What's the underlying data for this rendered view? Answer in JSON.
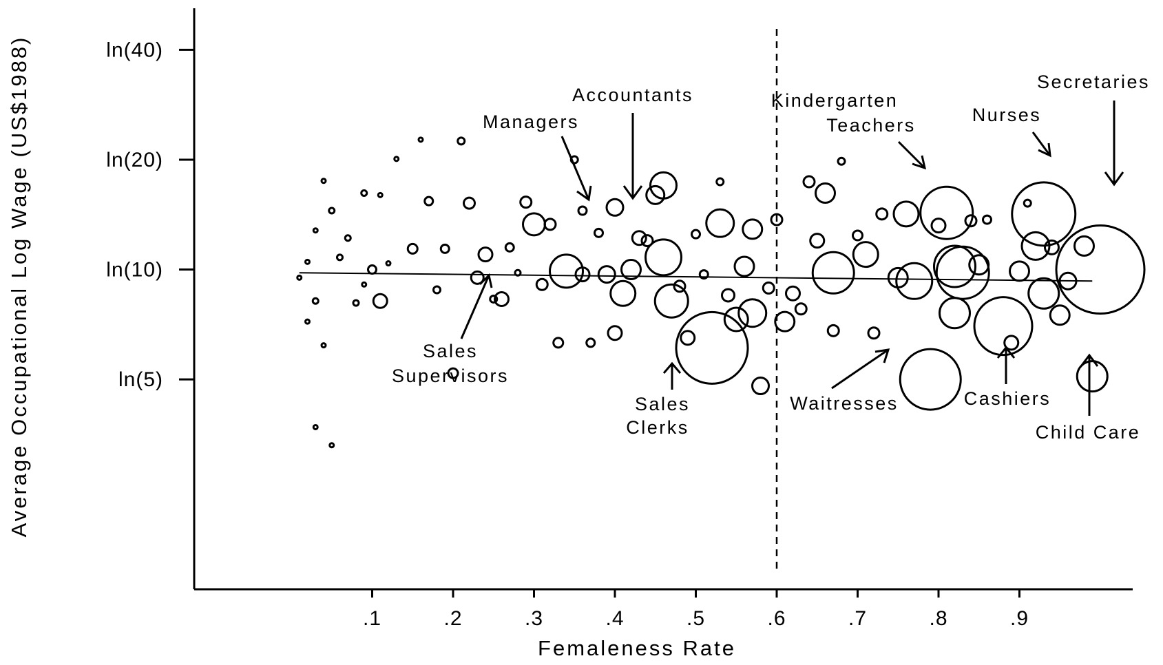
{
  "chart_data": {
    "type": "scatter",
    "subtype": "bubble",
    "xlabel": "Femaleness Rate",
    "ylabel": "Average Occupational Log Wage (US$1988)",
    "x_ticks": [
      {
        "value": 0.1,
        "label": ".1"
      },
      {
        "value": 0.2,
        "label": ".2"
      },
      {
        "value": 0.3,
        "label": ".3"
      },
      {
        "value": 0.4,
        "label": ".4"
      },
      {
        "value": 0.5,
        "label": ".5"
      },
      {
        "value": 0.6,
        "label": ".6"
      },
      {
        "value": 0.7,
        "label": ".7"
      },
      {
        "value": 0.8,
        "label": ".8"
      },
      {
        "value": 0.9,
        "label": ".9"
      }
    ],
    "y_ticks": [
      {
        "value": 5,
        "label": "ln(5)"
      },
      {
        "value": 10,
        "label": "ln(10)"
      },
      {
        "value": 20,
        "label": "ln(20)"
      },
      {
        "value": 40,
        "label": "ln(40)"
      }
    ],
    "xlim": [
      -0.12,
      1.04
    ],
    "ylim_wage": [
      1.33,
      52
    ],
    "y_scale": "log",
    "reference_line_x": 0.6,
    "fit_line": {
      "x": [
        0.01,
        0.99
      ],
      "wage": [
        9.8,
        9.3
      ]
    },
    "annotations": [
      {
        "text": "Accountants",
        "x": 0.465,
        "wage": 16.5
      },
      {
        "text": "Managers",
        "x": 0.413,
        "wage": 13.5
      },
      {
        "text": "Sales Supervisors",
        "x": 0.3,
        "wage": 9.2
      },
      {
        "text": "Sales Clerks",
        "x": 0.51,
        "wage": 4.9
      },
      {
        "text": "Kindergarten Teachers",
        "x": 0.81,
        "wage": 18.0
      },
      {
        "text": "Nurses",
        "x": 0.93,
        "wage": 20.0
      },
      {
        "text": "Secretaries",
        "x": 0.985,
        "wage": 15.5
      },
      {
        "text": "Waitresses",
        "x": 0.77,
        "wage": 5.8
      },
      {
        "text": "Cashiers",
        "x": 0.885,
        "wage": 6.0
      },
      {
        "text": "Child Care",
        "x": 0.985,
        "wage": 5.2
      }
    ],
    "points": [
      {
        "x": 0.02,
        "wage": 7.2,
        "size": 3
      },
      {
        "x": 0.03,
        "wage": 8.2,
        "size": 4
      },
      {
        "x": 0.01,
        "wage": 9.5,
        "size": 3
      },
      {
        "x": 0.02,
        "wage": 10.5,
        "size": 3
      },
      {
        "x": 0.03,
        "wage": 12.8,
        "size": 3
      },
      {
        "x": 0.04,
        "wage": 17.5,
        "size": 3
      },
      {
        "x": 0.05,
        "wage": 14.5,
        "size": 4
      },
      {
        "x": 0.04,
        "wage": 6.2,
        "size": 3
      },
      {
        "x": 0.03,
        "wage": 3.7,
        "size": 3
      },
      {
        "x": 0.05,
        "wage": 3.3,
        "size": 3
      },
      {
        "x": 0.06,
        "wage": 10.8,
        "size": 4
      },
      {
        "x": 0.07,
        "wage": 12.2,
        "size": 4
      },
      {
        "x": 0.08,
        "wage": 8.1,
        "size": 4
      },
      {
        "x": 0.09,
        "wage": 16.2,
        "size": 4
      },
      {
        "x": 0.09,
        "wage": 9.1,
        "size": 3
      },
      {
        "x": 0.1,
        "wage": 10.0,
        "size": 6
      },
      {
        "x": 0.11,
        "wage": 8.2,
        "size": 10
      },
      {
        "x": 0.11,
        "wage": 16.0,
        "size": 3
      },
      {
        "x": 0.12,
        "wage": 10.4,
        "size": 3
      },
      {
        "x": 0.13,
        "wage": 20.1,
        "size": 3
      },
      {
        "x": 0.15,
        "wage": 11.4,
        "size": 7
      },
      {
        "x": 0.16,
        "wage": 22.7,
        "size": 3
      },
      {
        "x": 0.17,
        "wage": 15.4,
        "size": 6
      },
      {
        "x": 0.18,
        "wage": 8.8,
        "size": 5
      },
      {
        "x": 0.19,
        "wage": 11.4,
        "size": 6
      },
      {
        "x": 0.2,
        "wage": 5.2,
        "size": 7
      },
      {
        "x": 0.21,
        "wage": 22.5,
        "size": 5
      },
      {
        "x": 0.22,
        "wage": 15.2,
        "size": 8
      },
      {
        "x": 0.23,
        "wage": 9.5,
        "size": 9
      },
      {
        "x": 0.24,
        "wage": 11.0,
        "size": 10
      },
      {
        "x": 0.25,
        "wage": 8.3,
        "size": 5
      },
      {
        "x": 0.26,
        "wage": 8.3,
        "size": 10
      },
      {
        "x": 0.27,
        "wage": 11.5,
        "size": 6
      },
      {
        "x": 0.28,
        "wage": 9.8,
        "size": 4
      },
      {
        "x": 0.29,
        "wage": 15.3,
        "size": 8
      },
      {
        "x": 0.3,
        "wage": 13.3,
        "size": 16
      },
      {
        "x": 0.31,
        "wage": 9.1,
        "size": 8
      },
      {
        "x": 0.32,
        "wage": 13.3,
        "size": 8
      },
      {
        "x": 0.33,
        "wage": 6.3,
        "size": 7
      },
      {
        "x": 0.34,
        "wage": 9.9,
        "size": 24
      },
      {
        "x": 0.35,
        "wage": 20.0,
        "size": 5
      },
      {
        "x": 0.36,
        "wage": 14.5,
        "size": 6
      },
      {
        "x": 0.36,
        "wage": 9.7,
        "size": 10
      },
      {
        "x": 0.37,
        "wage": 6.3,
        "size": 6
      },
      {
        "x": 0.38,
        "wage": 12.6,
        "size": 6
      },
      {
        "x": 0.39,
        "wage": 9.7,
        "size": 12
      },
      {
        "x": 0.4,
        "wage": 14.8,
        "size": 12
      },
      {
        "x": 0.4,
        "wage": 6.7,
        "size": 10
      },
      {
        "x": 0.41,
        "wage": 8.6,
        "size": 18
      },
      {
        "x": 0.42,
        "wage": 10.0,
        "size": 14
      },
      {
        "x": 0.43,
        "wage": 12.2,
        "size": 10
      },
      {
        "x": 0.44,
        "wage": 12.0,
        "size": 8
      },
      {
        "x": 0.45,
        "wage": 16.0,
        "size": 13
      },
      {
        "x": 0.46,
        "wage": 17.0,
        "size": 19
      },
      {
        "x": 0.46,
        "wage": 10.8,
        "size": 26
      },
      {
        "x": 0.47,
        "wage": 8.2,
        "size": 24
      },
      {
        "x": 0.48,
        "wage": 9.0,
        "size": 8
      },
      {
        "x": 0.49,
        "wage": 6.5,
        "size": 10
      },
      {
        "x": 0.5,
        "wage": 12.5,
        "size": 6
      },
      {
        "x": 0.51,
        "wage": 9.7,
        "size": 6
      },
      {
        "x": 0.52,
        "wage": 6.1,
        "size": 52
      },
      {
        "x": 0.53,
        "wage": 13.4,
        "size": 20
      },
      {
        "x": 0.53,
        "wage": 17.4,
        "size": 5
      },
      {
        "x": 0.54,
        "wage": 8.5,
        "size": 9
      },
      {
        "x": 0.55,
        "wage": 7.3,
        "size": 17
      },
      {
        "x": 0.56,
        "wage": 10.2,
        "size": 14
      },
      {
        "x": 0.57,
        "wage": 12.9,
        "size": 14
      },
      {
        "x": 0.57,
        "wage": 7.6,
        "size": 20
      },
      {
        "x": 0.58,
        "wage": 4.8,
        "size": 12
      },
      {
        "x": 0.59,
        "wage": 8.9,
        "size": 8
      },
      {
        "x": 0.6,
        "wage": 13.7,
        "size": 8
      },
      {
        "x": 0.61,
        "wage": 7.2,
        "size": 14
      },
      {
        "x": 0.62,
        "wage": 8.6,
        "size": 10
      },
      {
        "x": 0.63,
        "wage": 7.8,
        "size": 8
      },
      {
        "x": 0.64,
        "wage": 17.4,
        "size": 8
      },
      {
        "x": 0.65,
        "wage": 12.0,
        "size": 10
      },
      {
        "x": 0.66,
        "wage": 16.2,
        "size": 14
      },
      {
        "x": 0.67,
        "wage": 9.8,
        "size": 30
      },
      {
        "x": 0.67,
        "wage": 6.8,
        "size": 8
      },
      {
        "x": 0.68,
        "wage": 19.8,
        "size": 5
      },
      {
        "x": 0.7,
        "wage": 12.4,
        "size": 7
      },
      {
        "x": 0.71,
        "wage": 11.0,
        "size": 18
      },
      {
        "x": 0.72,
        "wage": 6.7,
        "size": 8
      },
      {
        "x": 0.73,
        "wage": 14.2,
        "size": 8
      },
      {
        "x": 0.75,
        "wage": 9.5,
        "size": 14
      },
      {
        "x": 0.76,
        "wage": 14.2,
        "size": 18
      },
      {
        "x": 0.77,
        "wage": 9.3,
        "size": 26
      },
      {
        "x": 0.79,
        "wage": 5.0,
        "size": 44
      },
      {
        "x": 0.8,
        "wage": 13.2,
        "size": 10
      },
      {
        "x": 0.81,
        "wage": 14.3,
        "size": 38
      },
      {
        "x": 0.82,
        "wage": 10.2,
        "size": 30
      },
      {
        "x": 0.82,
        "wage": 7.6,
        "size": 22
      },
      {
        "x": 0.83,
        "wage": 9.8,
        "size": 38
      },
      {
        "x": 0.84,
        "wage": 13.6,
        "size": 8
      },
      {
        "x": 0.85,
        "wage": 10.3,
        "size": 14
      },
      {
        "x": 0.86,
        "wage": 13.7,
        "size": 6
      },
      {
        "x": 0.88,
        "wage": 7.0,
        "size": 42
      },
      {
        "x": 0.89,
        "wage": 6.3,
        "size": 10
      },
      {
        "x": 0.9,
        "wage": 9.9,
        "size": 14
      },
      {
        "x": 0.91,
        "wage": 15.2,
        "size": 5
      },
      {
        "x": 0.92,
        "wage": 11.6,
        "size": 20
      },
      {
        "x": 0.93,
        "wage": 14.2,
        "size": 46
      },
      {
        "x": 0.93,
        "wage": 8.6,
        "size": 22
      },
      {
        "x": 0.94,
        "wage": 11.5,
        "size": 10
      },
      {
        "x": 0.95,
        "wage": 7.5,
        "size": 14
      },
      {
        "x": 0.96,
        "wage": 9.3,
        "size": 12
      },
      {
        "x": 0.98,
        "wage": 11.6,
        "size": 14
      },
      {
        "x": 0.99,
        "wage": 5.1,
        "size": 22
      },
      {
        "x": 1.0,
        "wage": 10.0,
        "size": 64
      }
    ]
  }
}
